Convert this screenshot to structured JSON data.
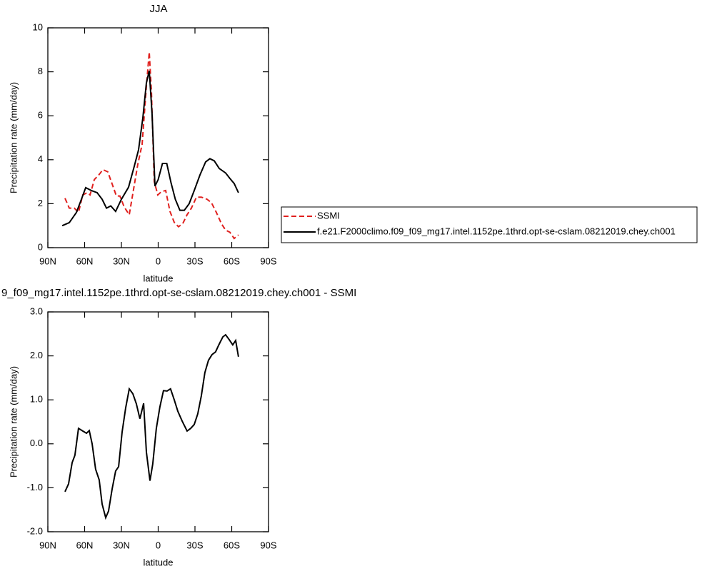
{
  "chart_data": [
    {
      "type": "line",
      "title": "JJA",
      "xlabel": "latitude",
      "ylabel": "Precipitation rate (mm/day)",
      "xlim": [
        90,
        -90
      ],
      "xticks": [
        {
          "value": 90,
          "label": "90N"
        },
        {
          "value": 60,
          "label": "60N"
        },
        {
          "value": 30,
          "label": "30N"
        },
        0,
        {
          "value": -30,
          "label": "30S"
        },
        {
          "value": -60,
          "label": "60S"
        },
        {
          "value": -90,
          "label": "90S"
        }
      ],
      "ylim": [
        0,
        10
      ],
      "yticks": [
        0,
        2,
        4,
        6,
        8,
        10
      ],
      "legend": "right",
      "series": [
        {
          "name": "SSMI",
          "color": "#e0201e",
          "dash": true,
          "x": [
            76,
            72.5,
            68.4,
            65,
            61.5,
            58,
            55.6,
            52.1,
            48.6,
            45.1,
            41.1,
            37.6,
            34.1,
            31.2,
            27.7,
            23.6,
            20.1,
            16.6,
            13.1,
            9.6,
            7.3,
            5.5,
            3.2,
            0.3,
            -2.6,
            -6.1,
            -9.6,
            -13.1,
            -16.6,
            -20.1,
            -23.6,
            -27.1,
            -31.2,
            -35.2,
            -39.9,
            -43.4,
            -47.5,
            -51.5,
            -55,
            -58.5,
            -62,
            -65.5
          ],
          "values": [
            2.25,
            1.8,
            1.8,
            1.6,
            2.4,
            2.5,
            2.4,
            3.1,
            3.3,
            3.55,
            3.45,
            2.9,
            2.35,
            2.35,
            1.85,
            1.5,
            2.65,
            3.8,
            4.7,
            7.35,
            8.9,
            7.05,
            3.0,
            2.4,
            2.55,
            2.6,
            1.65,
            1.15,
            0.95,
            1.1,
            1.5,
            1.8,
            2.3,
            2.3,
            2.2,
            2.05,
            1.6,
            1.1,
            0.8,
            0.7,
            0.42,
            0.58
          ]
        },
        {
          "name": "f.e21.F2000climo.f09_f09_mg17.intel.1152pe.1thrd.opt-se-cslam.08212019.chey.ch001",
          "color": "#000000",
          "dash": false,
          "x": [
            78.3,
            72.5,
            66.7,
            62.6,
            59.1,
            54.5,
            49.8,
            45.7,
            42.2,
            38.7,
            34.7,
            30,
            24.2,
            19.5,
            16,
            12.5,
            9.6,
            7.3,
            5,
            2.6,
            0,
            -3.5,
            -7,
            -10.5,
            -14,
            -17.7,
            -21.3,
            -25.3,
            -29.4,
            -34,
            -38.7,
            -42.2,
            -45.7,
            -49.8,
            -55,
            -58.5,
            -62,
            -65.5
          ],
          "values": [
            1.0,
            1.14,
            1.6,
            2.2,
            2.73,
            2.6,
            2.5,
            2.2,
            1.8,
            1.9,
            1.65,
            2.2,
            2.75,
            3.7,
            4.45,
            5.9,
            7.5,
            8.05,
            6.1,
            2.8,
            3.1,
            3.83,
            3.83,
            2.95,
            2.2,
            1.7,
            1.7,
            2.0,
            2.6,
            3.3,
            3.9,
            4.05,
            3.95,
            3.6,
            3.4,
            3.15,
            2.92,
            2.5
          ]
        }
      ]
    },
    {
      "type": "line",
      "title": "9_f09_mg17.intel.1152pe.1thrd.opt-se-cslam.08212019.chey.ch001 - SSMI",
      "xlabel": "latitude",
      "ylabel": "Precipitation rate (mm/day)",
      "xlim": [
        90,
        -90
      ],
      "xticks": [
        {
          "value": 90,
          "label": "90N"
        },
        {
          "value": 60,
          "label": "60N"
        },
        {
          "value": 30,
          "label": "30N"
        },
        0,
        {
          "value": -30,
          "label": "30S"
        },
        {
          "value": -60,
          "label": "60S"
        },
        {
          "value": -90,
          "label": "90S"
        }
      ],
      "ylim": [
        -2,
        3
      ],
      "yticks": [
        {
          "value": -2,
          "label": "-2.0"
        },
        {
          "value": -1,
          "label": "-1.0"
        },
        {
          "value": 0,
          "label": "0.0"
        },
        {
          "value": 1,
          "label": "1.0"
        },
        {
          "value": 2,
          "label": "2.0"
        },
        {
          "value": 3,
          "label": "3.0"
        }
      ],
      "series": [
        {
          "color": "#000000",
          "x": [
            76,
            73.1,
            70.2,
            67.9,
            65,
            61.5,
            58.5,
            56.2,
            53.9,
            51,
            48.1,
            45.7,
            42.8,
            40.5,
            37.6,
            34.7,
            32.3,
            29.4,
            26.5,
            23.6,
            20.7,
            17.8,
            14.9,
            11.9,
            9.6,
            6.7,
            4.4,
            1.5,
            -1.4,
            -4.3,
            -7.2,
            -10.1,
            -13.1,
            -16,
            -19.5,
            -23.6,
            -26.5,
            -29.4,
            -32.3,
            -35.2,
            -38.1,
            -41,
            -43.9,
            -46.8,
            -49.8,
            -52.7,
            -55,
            -57.9,
            -60.8,
            -63.2,
            -65.5
          ],
          "values": [
            -1.09,
            -0.91,
            -0.43,
            -0.26,
            0.35,
            0.29,
            0.24,
            0.3,
            0,
            -0.58,
            -0.82,
            -1.37,
            -1.68,
            -1.53,
            -1.03,
            -0.62,
            -0.52,
            0.27,
            0.82,
            1.25,
            1.14,
            0.91,
            0.57,
            0.92,
            -0.19,
            -0.84,
            -0.46,
            0.35,
            0.84,
            1.21,
            1.2,
            1.25,
            1.0,
            0.74,
            0.52,
            0.29,
            0.35,
            0.44,
            0.68,
            1.09,
            1.62,
            1.9,
            2.03,
            2.09,
            2.27,
            2.43,
            2.48,
            2.37,
            2.25,
            2.35,
            1.98
          ]
        }
      ]
    }
  ]
}
